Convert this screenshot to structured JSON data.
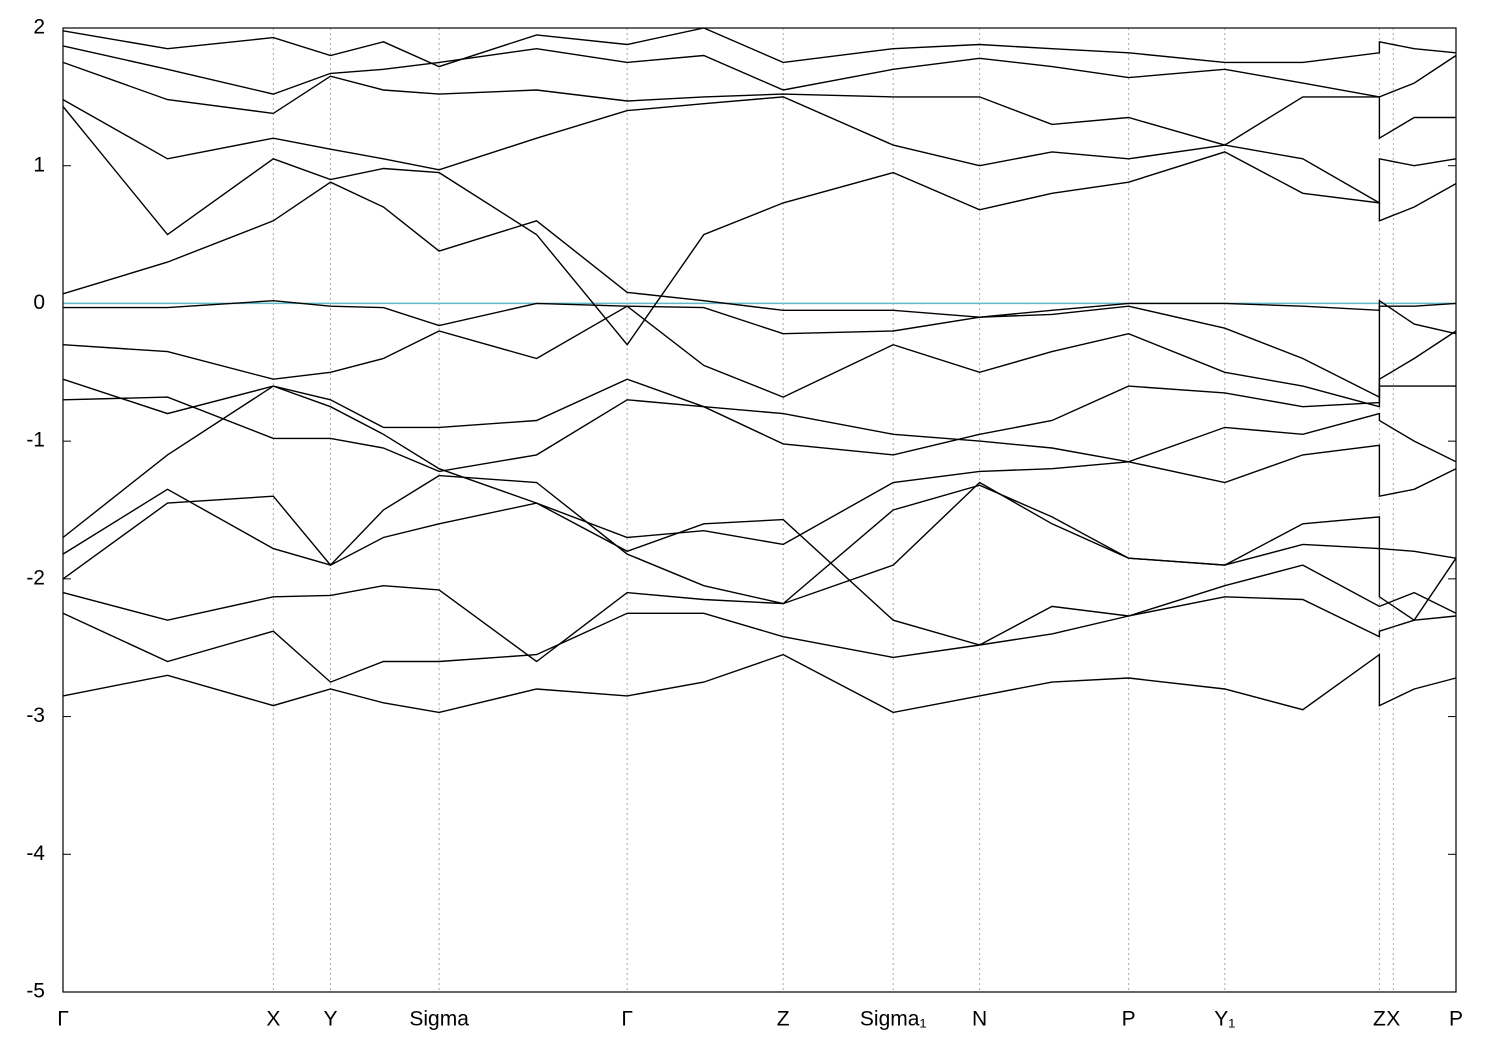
{
  "chart_data": {
    "type": "line",
    "x": [
      0,
      0.075,
      0.151,
      0.192,
      0.23,
      0.27,
      0.34,
      0.405,
      0.46,
      0.517,
      0.596,
      0.658,
      0.71,
      0.765,
      0.834,
      0.89,
      0.945,
      0.945,
      0.97,
      1.0
    ],
    "xlim": [
      0,
      1
    ],
    "xticks": [
      {
        "value": 0,
        "label": "Γ"
      },
      {
        "value": 0.151,
        "label": "X"
      },
      {
        "value": 0.192,
        "label": "Y"
      },
      {
        "value": 0.27,
        "label": "Sigma"
      },
      {
        "value": 0.405,
        "label": "Γ"
      },
      {
        "value": 0.517,
        "label": "Z"
      },
      {
        "value": 0.596,
        "label": "Sigma₁"
      },
      {
        "value": 0.658,
        "label": "N"
      },
      {
        "value": 0.765,
        "label": "P"
      },
      {
        "value": 0.834,
        "label": "Y₁"
      },
      {
        "value": 0.945,
        "label": "Z"
      },
      {
        "value": 0.955,
        "label": "X"
      },
      {
        "value": 1.0,
        "label": "P"
      }
    ],
    "ylim": [
      -5,
      2
    ],
    "yticks": [
      2,
      1,
      0,
      -1,
      -2,
      -3,
      -4,
      -5
    ],
    "grid": true,
    "fermi_level": 0,
    "fermi_color": "#5fb8c8",
    "series": [
      {
        "color": "#000000",
        "values": [
          -2.85,
          -2.7,
          -2.92,
          -2.8,
          -2.9,
          -2.97,
          -2.8,
          -2.85,
          -2.75,
          -2.55,
          -2.97,
          -2.85,
          -2.75,
          -2.72,
          -2.8,
          -2.95,
          -2.55,
          -2.92,
          -2.8,
          -2.72
        ]
      },
      {
        "color": "#000000",
        "values": [
          -2.25,
          -2.6,
          -2.38,
          -2.75,
          -2.6,
          -2.6,
          -2.55,
          -2.25,
          -2.25,
          -2.42,
          -2.57,
          -2.48,
          -2.4,
          -2.27,
          -2.13,
          -2.15,
          -2.42,
          -2.38,
          -2.3,
          -2.27
        ]
      },
      {
        "color": "#000000",
        "values": [
          -2.1,
          -2.3,
          -2.13,
          -2.12,
          -2.05,
          -2.08,
          -2.6,
          -2.1,
          -2.15,
          -2.18,
          -1.9,
          -1.3,
          -1.6,
          -1.85,
          -1.9,
          -1.6,
          -1.55,
          -2.13,
          -2.3,
          -1.85
        ]
      },
      {
        "color": "#000000",
        "values": [
          -2.0,
          -1.45,
          -1.4,
          -1.9,
          -1.7,
          -1.6,
          -1.45,
          -1.8,
          -1.6,
          -1.57,
          -2.3,
          -2.48,
          -2.2,
          -2.27,
          -2.05,
          -1.9,
          -2.2,
          -2.2,
          -2.1,
          -2.25
        ]
      },
      {
        "color": "#000000",
        "values": [
          -1.82,
          -1.35,
          -1.78,
          -1.9,
          -1.5,
          -1.25,
          -1.3,
          -1.82,
          -2.05,
          -2.18,
          -1.5,
          -1.32,
          -1.55,
          -1.85,
          -1.9,
          -1.75,
          -1.78,
          -1.78,
          -1.8,
          -1.85
        ]
      },
      {
        "color": "#000000",
        "values": [
          -1.7,
          -1.1,
          -0.6,
          -0.75,
          -0.95,
          -1.2,
          -1.45,
          -1.7,
          -1.65,
          -1.75,
          -1.3,
          -1.22,
          -1.2,
          -1.15,
          -1.3,
          -1.1,
          -1.03,
          -1.4,
          -1.35,
          -1.2
        ]
      },
      {
        "color": "#000000",
        "values": [
          -0.7,
          -0.68,
          -0.98,
          -0.98,
          -1.05,
          -1.22,
          -1.1,
          -0.7,
          -0.75,
          -0.8,
          -0.95,
          -1.0,
          -1.05,
          -1.15,
          -0.9,
          -0.95,
          -0.8,
          -0.85,
          -1.0,
          -1.15
        ]
      },
      {
        "color": "#000000",
        "values": [
          -0.55,
          -0.8,
          -0.6,
          -0.7,
          -0.9,
          -0.9,
          -0.85,
          -0.55,
          -0.75,
          -1.02,
          -1.1,
          -0.95,
          -0.85,
          -0.6,
          -0.65,
          -0.75,
          -0.72,
          -0.6,
          -0.6,
          -0.6
        ]
      },
      {
        "color": "#000000",
        "values": [
          -0.3,
          -0.35,
          -0.55,
          -0.5,
          -0.4,
          -0.2,
          -0.4,
          -0.02,
          -0.45,
          -0.68,
          -0.3,
          -0.5,
          -0.35,
          -0.22,
          -0.5,
          -0.6,
          -0.75,
          -0.55,
          -0.4,
          -0.2
        ]
      },
      {
        "color": "#000000",
        "values": [
          -0.03,
          -0.03,
          0.02,
          -0.02,
          -0.03,
          -0.16,
          0.0,
          -0.02,
          -0.03,
          -0.22,
          -0.2,
          -0.1,
          -0.08,
          -0.02,
          -0.18,
          -0.4,
          -0.68,
          0.02,
          -0.15,
          -0.22
        ]
      },
      {
        "color": "#000000",
        "values": [
          0.07,
          0.3,
          0.6,
          0.88,
          0.7,
          0.38,
          0.6,
          0.08,
          0.02,
          -0.05,
          -0.05,
          -0.1,
          -0.05,
          0.0,
          0.0,
          -0.02,
          -0.05,
          -0.02,
          -0.02,
          0.0
        ]
      },
      {
        "color": "#000000",
        "values": [
          1.43,
          0.5,
          1.05,
          0.9,
          0.98,
          0.95,
          0.5,
          -0.3,
          0.5,
          0.73,
          0.95,
          0.68,
          0.8,
          0.88,
          1.1,
          0.8,
          0.73,
          0.6,
          0.7,
          0.87
        ]
      },
      {
        "color": "#000000",
        "values": [
          1.48,
          1.05,
          1.2,
          1.12,
          1.05,
          0.97,
          1.2,
          1.4,
          1.45,
          1.5,
          1.15,
          1.0,
          1.1,
          1.05,
          1.15,
          1.05,
          0.73,
          1.05,
          1.0,
          1.05
        ]
      },
      {
        "color": "#000000",
        "values": [
          1.75,
          1.48,
          1.38,
          1.65,
          1.55,
          1.52,
          1.55,
          1.47,
          1.5,
          1.52,
          1.5,
          1.5,
          1.3,
          1.35,
          1.15,
          1.5,
          1.5,
          1.2,
          1.35,
          1.35
        ]
      },
      {
        "color": "#000000",
        "values": [
          1.87,
          1.7,
          1.52,
          1.67,
          1.7,
          1.75,
          1.85,
          1.75,
          1.8,
          1.55,
          1.7,
          1.78,
          1.72,
          1.64,
          1.7,
          1.6,
          1.5,
          1.5,
          1.6,
          1.8
        ]
      },
      {
        "color": "#000000",
        "values": [
          1.98,
          1.85,
          1.93,
          1.8,
          1.9,
          1.72,
          1.95,
          1.88,
          2.0,
          1.75,
          1.85,
          1.88,
          1.85,
          1.82,
          1.75,
          1.75,
          1.82,
          1.9,
          1.85,
          1.82
        ]
      }
    ]
  }
}
